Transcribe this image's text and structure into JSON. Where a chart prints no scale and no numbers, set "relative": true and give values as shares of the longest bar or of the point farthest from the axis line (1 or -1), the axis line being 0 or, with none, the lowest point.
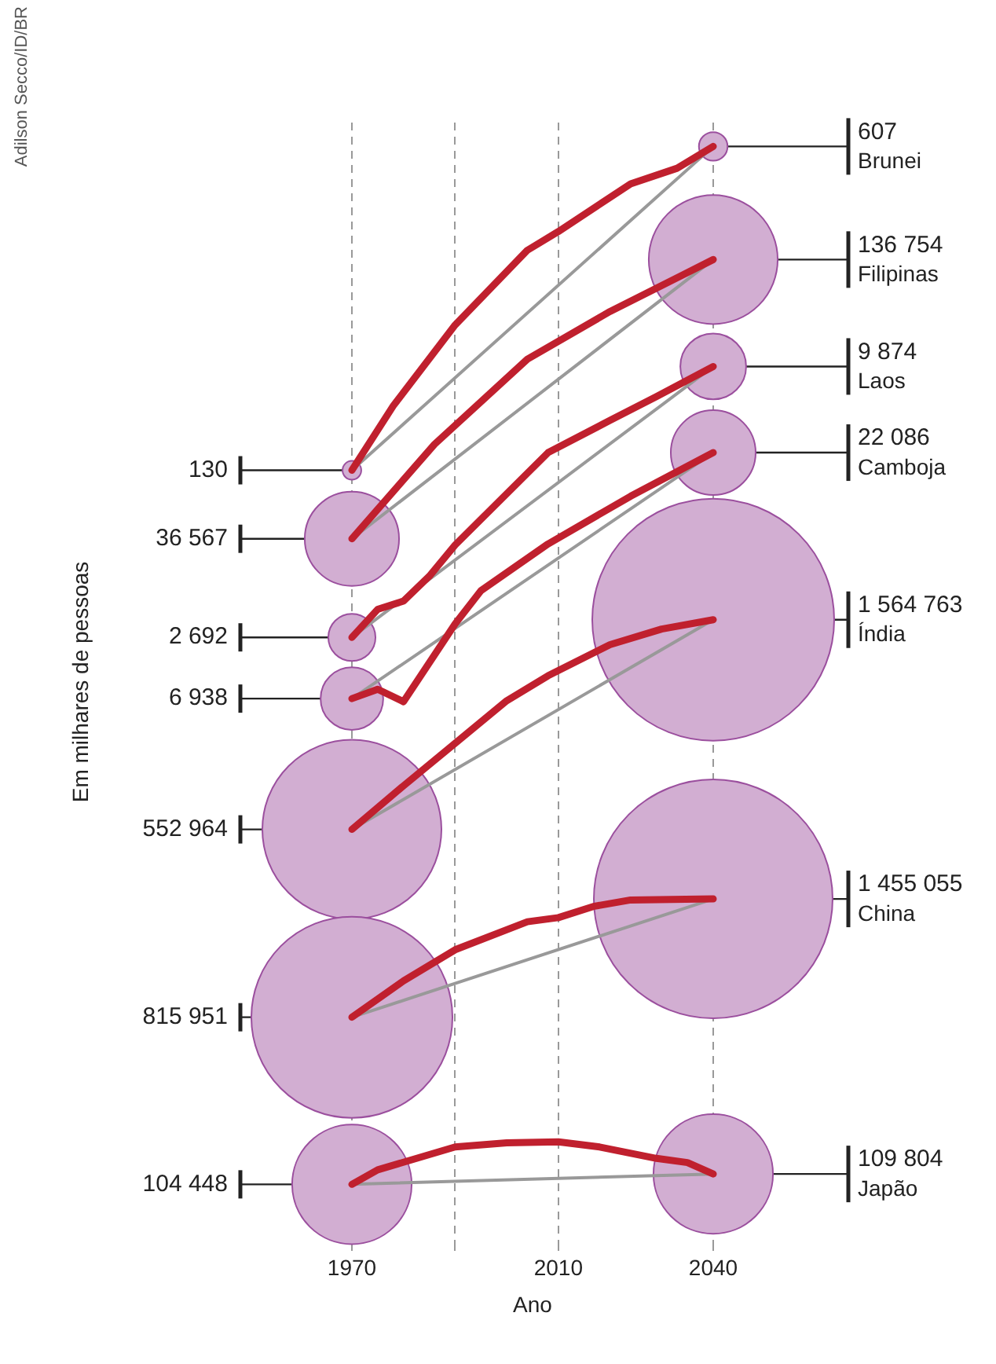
{
  "chart_data": {
    "type": "line",
    "xlabel": "Ano",
    "annotations": [
      "Adilson Secco/ID/BR",
      "Em milhares de pessoas",
      "130",
      "36 567",
      "2 692",
      "6 938",
      "552 964",
      "815 951",
      "104 448",
      "607",
      "136 754",
      "9 874",
      "22 086",
      "1 564 763",
      "1 455 055",
      "109 804"
    ],
    "relative": true,
    "tick_labels": "x",
    "grid": "x",
    "xlim": [
      1970,
      2040
    ],
    "xticks": [
      1970,
      {
        "value": 1990,
        "label": null
      },
      2010,
      2040
    ],
    "series": [
      {
        "type": "bubble",
        "color": "#d2aed2",
        "x": [
          1970,
          1970,
          1970,
          1970,
          1970,
          1970,
          1970
        ],
        "values": [
          0.688,
          0.622,
          0.527,
          0.468,
          0.342,
          0.161,
          0
        ],
        "sizes": [
          0.006,
          0.152,
          0.038,
          0.067,
          0.548,
          0.691,
          0.244
        ]
      },
      {
        "type": "bubble",
        "color": "#d2aed2",
        "x": [
          2040,
          2040,
          2040,
          2040,
          2040,
          2040,
          2040
        ],
        "values": [
          1.0,
          0.891,
          0.788,
          0.705,
          0.544,
          0.275,
          0.01
        ],
        "sizes": [
          0.014,
          0.284,
          0.074,
          0.123,
          1,
          0.974,
          0.244
        ]
      },
      {
        "type": "line",
        "color": "#999999",
        "x": [
          1970,
          2040
        ],
        "values": [
          0.688,
          1.0
        ]
      },
      {
        "type": "line",
        "color": "#999999",
        "x": [
          1970,
          2040
        ],
        "values": [
          0.622,
          0.891
        ]
      },
      {
        "type": "line",
        "color": "#999999",
        "x": [
          1970,
          2040
        ],
        "values": [
          0.527,
          0.788
        ]
      },
      {
        "type": "line",
        "color": "#999999",
        "x": [
          1970,
          2040
        ],
        "values": [
          0.468,
          0.705
        ]
      },
      {
        "type": "line",
        "color": "#999999",
        "x": [
          1970,
          2040
        ],
        "values": [
          0.342,
          0.544
        ]
      },
      {
        "type": "line",
        "color": "#999999",
        "x": [
          1970,
          2040
        ],
        "values": [
          0.161,
          0.275
        ]
      },
      {
        "type": "line",
        "color": "#999999",
        "x": [
          1970,
          2040
        ],
        "values": [
          0,
          0.01
        ]
      },
      {
        "type": "line",
        "name": "Brunei",
        "color": "#c0202e",
        "x": [
          1970,
          1978,
          1990,
          2004,
          2010,
          2024,
          2033,
          2040
        ],
        "values": [
          0.688,
          0.75,
          0.828,
          0.9,
          0.918,
          0.964,
          0.979,
          1.0
        ]
      },
      {
        "type": "line",
        "name": "Filipinas",
        "color": "#c0202e",
        "x": [
          1970,
          1986,
          2004,
          2020,
          2034,
          2040
        ],
        "values": [
          0.622,
          0.713,
          0.795,
          0.841,
          0.876,
          0.891
        ]
      },
      {
        "type": "line",
        "name": "Laos",
        "color": "#c0202e",
        "x": [
          1970,
          1975,
          1980,
          1985,
          1990,
          2008,
          2020,
          2029,
          2040
        ],
        "values": [
          0.527,
          0.554,
          0.562,
          0.586,
          0.616,
          0.705,
          0.736,
          0.759,
          0.788
        ]
      },
      {
        "type": "line",
        "name": "Camboja",
        "color": "#c0202e",
        "x": [
          1970,
          1975,
          1980,
          1990,
          1995,
          2008,
          2024,
          2040
        ],
        "values": [
          0.468,
          0.477,
          0.465,
          0.54,
          0.572,
          0.617,
          0.663,
          0.705
        ]
      },
      {
        "type": "line",
        "name": "Índia",
        "color": "#c0202e",
        "x": [
          1970,
          1980,
          1990,
          2000,
          2008,
          2020,
          2030,
          2040
        ],
        "values": [
          0.342,
          0.384,
          0.425,
          0.466,
          0.49,
          0.52,
          0.535,
          0.544
        ]
      },
      {
        "type": "line",
        "name": "China",
        "color": "#c0202e",
        "x": [
          1970,
          1980,
          1990,
          2004,
          2010,
          2017,
          2024,
          2040
        ],
        "values": [
          0.161,
          0.196,
          0.226,
          0.253,
          0.257,
          0.268,
          0.274,
          0.275
        ]
      },
      {
        "type": "line",
        "name": "Japão",
        "color": "#c0202e",
        "x": [
          1970,
          1975,
          1990,
          2000,
          2010,
          2018,
          2029,
          2035,
          2040
        ],
        "values": [
          0,
          0.014,
          0.036,
          0.04,
          0.041,
          0.036,
          0.025,
          0.021,
          0.01
        ]
      }
    ]
  }
}
